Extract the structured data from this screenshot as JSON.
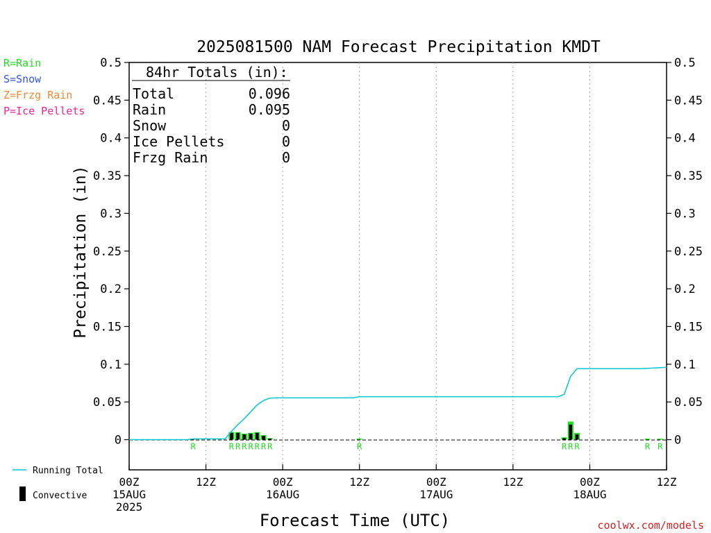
{
  "chart_data": {
    "type": "bar",
    "title": "2025081500 NAM Forecast Precipitation KMDT",
    "ylabel": "Precipitation  (in)",
    "xlabel": "Forecast Time (UTC)",
    "ylim": [
      -0.04,
      0.5
    ],
    "xlim": [
      0,
      84
    ],
    "y_ticks": [
      0,
      0.05,
      0.1,
      0.15,
      0.2,
      0.25,
      0.3,
      0.35,
      0.4,
      0.45,
      0.5
    ],
    "y_tick_labels": [
      "0",
      "0.05",
      "0.1",
      "0.15",
      "0.2",
      "0.25",
      "0.3",
      "0.35",
      "0.4",
      "0.45",
      "0.5"
    ],
    "x_ticks": [
      {
        "hour": 0,
        "lines": [
          "00Z",
          "15AUG",
          "2025"
        ]
      },
      {
        "hour": 12,
        "lines": [
          "12Z"
        ]
      },
      {
        "hour": 24,
        "lines": [
          "00Z",
          "16AUG"
        ]
      },
      {
        "hour": 36,
        "lines": [
          "12Z"
        ]
      },
      {
        "hour": 48,
        "lines": [
          "00Z",
          "17AUG"
        ]
      },
      {
        "hour": 60,
        "lines": [
          "12Z"
        ]
      },
      {
        "hour": 72,
        "lines": [
          "00Z",
          "18AUG"
        ]
      },
      {
        "hour": 84,
        "lines": [
          "12Z"
        ]
      }
    ],
    "grid": "vertical dotted at 12-hour ticks",
    "legend_types": [
      {
        "label": "R=Rain",
        "color": "#22dd22"
      },
      {
        "label": "S=Snow",
        "color": "#3355ee"
      },
      {
        "label": "Z=Frzg Rain",
        "color": "#ee8833"
      },
      {
        "label": "P=Ice Pellets",
        "color": "#ee2299"
      }
    ],
    "legend_series": [
      {
        "label": "Running Total",
        "color": "#00c8d2"
      },
      {
        "label": "Convective",
        "color": "#000000"
      }
    ],
    "totals": {
      "header": "84hr Totals (in):",
      "rows": [
        {
          "label": "Total",
          "value": "0.096"
        },
        {
          "label": "Rain",
          "value": "0.095"
        },
        {
          "label": "Snow",
          "value": "0"
        },
        {
          "label": "Ice Pellets",
          "value": "0"
        },
        {
          "label": "Frzg Rain",
          "value": "0"
        }
      ]
    },
    "series": [
      {
        "name": "Precipitation",
        "bars": [
          {
            "hour": 10,
            "total": 0.001,
            "convective": 0.0005,
            "type": "R"
          },
          {
            "hour": 16,
            "total": 0.01,
            "convective": 0.009,
            "type": "R"
          },
          {
            "hour": 17,
            "total": 0.01,
            "convective": 0.009,
            "type": "R"
          },
          {
            "hour": 18,
            "total": 0.008,
            "convective": 0.007,
            "type": "R"
          },
          {
            "hour": 19,
            "total": 0.009,
            "convective": 0.008,
            "type": "R"
          },
          {
            "hour": 20,
            "total": 0.01,
            "convective": 0.009,
            "type": "R"
          },
          {
            "hour": 21,
            "total": 0.006,
            "convective": 0.005,
            "type": "R"
          },
          {
            "hour": 22,
            "total": 0.002,
            "convective": 0.001,
            "type": "R"
          },
          {
            "hour": 36,
            "total": 0.0015,
            "convective": 0.0,
            "type": "R"
          },
          {
            "hour": 68,
            "total": 0.003,
            "convective": 0.002,
            "type": "R"
          },
          {
            "hour": 69,
            "total": 0.024,
            "convective": 0.02,
            "type": "R"
          },
          {
            "hour": 70,
            "total": 0.009,
            "convective": 0.007,
            "type": "R"
          },
          {
            "hour": 81,
            "total": 0.0005,
            "convective": 0.0,
            "type": "R"
          },
          {
            "hour": 83,
            "total": 0.0005,
            "convective": 0.0,
            "type": "R"
          }
        ]
      },
      {
        "name": "Running Total",
        "points": [
          [
            0,
            0
          ],
          [
            9,
            0
          ],
          [
            10,
            0.001
          ],
          [
            15,
            0.001
          ],
          [
            16,
            0.011
          ],
          [
            17,
            0.02
          ],
          [
            18,
            0.028
          ],
          [
            19,
            0.037
          ],
          [
            20,
            0.046
          ],
          [
            21,
            0.052
          ],
          [
            22,
            0.055
          ],
          [
            23,
            0.0555
          ],
          [
            24,
            0.0555
          ],
          [
            35,
            0.0555
          ],
          [
            36,
            0.057
          ],
          [
            48,
            0.057
          ],
          [
            67,
            0.057
          ],
          [
            68,
            0.06
          ],
          [
            69,
            0.084
          ],
          [
            70,
            0.094
          ],
          [
            71,
            0.094
          ],
          [
            80,
            0.094
          ],
          [
            81,
            0.0945
          ],
          [
            82,
            0.095
          ],
          [
            83,
            0.0955
          ],
          [
            84,
            0.096
          ]
        ]
      }
    ]
  },
  "credit": "coolwx.com/models"
}
